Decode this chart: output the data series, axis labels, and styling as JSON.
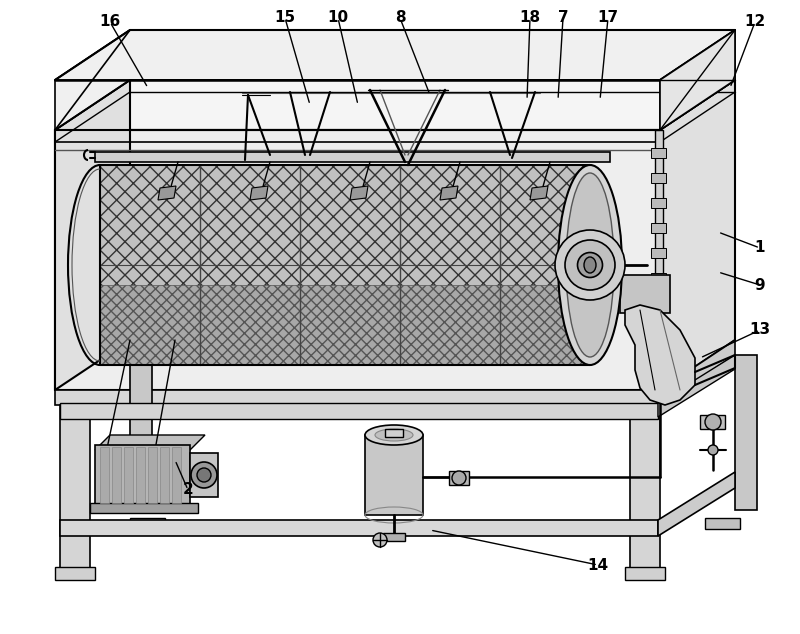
{
  "bg_color": "#ffffff",
  "lc": "#000000",
  "figsize": [
    8.0,
    6.34
  ],
  "dpi": 100,
  "annotations": [
    [
      "16",
      110,
      22,
      148,
      88
    ],
    [
      "15",
      285,
      18,
      310,
      105
    ],
    [
      "10",
      338,
      18,
      358,
      105
    ],
    [
      "8",
      400,
      18,
      430,
      95
    ],
    [
      "18",
      530,
      18,
      527,
      100
    ],
    [
      "7",
      563,
      18,
      558,
      100
    ],
    [
      "17",
      608,
      18,
      600,
      100
    ],
    [
      "12",
      755,
      22,
      730,
      88
    ],
    [
      "1",
      760,
      248,
      718,
      232
    ],
    [
      "9",
      760,
      285,
      718,
      272
    ],
    [
      "13",
      760,
      330,
      700,
      358
    ],
    [
      "2",
      188,
      490,
      175,
      460
    ],
    [
      "14",
      598,
      565,
      430,
      530
    ]
  ]
}
